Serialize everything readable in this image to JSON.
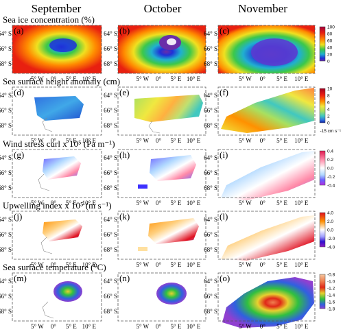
{
  "figure": {
    "columns": [
      "September",
      "October",
      "November"
    ],
    "rows": [
      {
        "title": "Sea ice concentration (%)",
        "panels": [
          "(a)",
          "(b)",
          "(c)"
        ],
        "colorbar": {
          "ticks": [
            "100",
            "80",
            "60",
            "40",
            "20",
            "0"
          ],
          "unit": ""
        }
      },
      {
        "title": "Sea surface height anomaly (cm)",
        "panels": [
          "(d)",
          "(e)",
          "(f)"
        ],
        "colorbar": {
          "ticks": [
            "10",
            "8",
            "6",
            "4",
            "2",
            "0"
          ],
          "unit": "-15 cm s⁻¹"
        }
      },
      {
        "title": "Wind stress curl x 10⁵ (Pa m⁻¹)",
        "panels": [
          "(g)",
          "(h)",
          "(i)"
        ],
        "colorbar": {
          "ticks": [
            "0.4",
            "0.2",
            "0.0",
            "-0.2",
            "-0.4"
          ],
          "unit": ""
        }
      },
      {
        "title": "Upwelling index x 10⁵ (m s⁻¹)",
        "panels": [
          "(j)",
          "(k)",
          "(l)"
        ],
        "colorbar": {
          "ticks": [
            "4.0",
            "2.0",
            "0.0",
            "-2.0",
            "-4.0"
          ],
          "unit": ""
        }
      },
      {
        "title": "Sea surface temperature (⁰C)",
        "panels": [
          "(m)",
          "(n)",
          "(o)"
        ],
        "colorbar": {
          "ticks": [
            "-0.8",
            "-1.0",
            "-1.2",
            "-1.4",
            "-1.6",
            "-1.8"
          ],
          "unit": ""
        }
      }
    ],
    "lat_ticks": [
      "64° S",
      "66° S",
      "68° S"
    ],
    "lon_ticks": [
      "5° W",
      "0°",
      "5° E",
      "10° E"
    ],
    "colors": {
      "ice": [
        "#a0003a",
        "#e82010",
        "#ff8a00",
        "#f0e020",
        "#3cc84a",
        "#20b0d0",
        "#2030d8",
        "#6a2ea8"
      ],
      "ssha": [
        "#a00020",
        "#f02010",
        "#ff9000",
        "#f0e840",
        "#a8e060",
        "#40c8c0",
        "#3070e0",
        "#1020a0"
      ],
      "curl": [
        "#e01850",
        "#ff8aa8",
        "#ffffff",
        "#b0d8ff",
        "#6a60ff",
        "#b030e0"
      ],
      "upw": [
        "#e01020",
        "#ff9000",
        "#ffffff",
        "#a0a0ff",
        "#3010d0",
        "#9020c0"
      ],
      "sst": [
        "#f5c7a0",
        "#f08050",
        "#e02818",
        "#e8d030",
        "#30c040",
        "#3060e0",
        "#9040d0"
      ]
    }
  }
}
